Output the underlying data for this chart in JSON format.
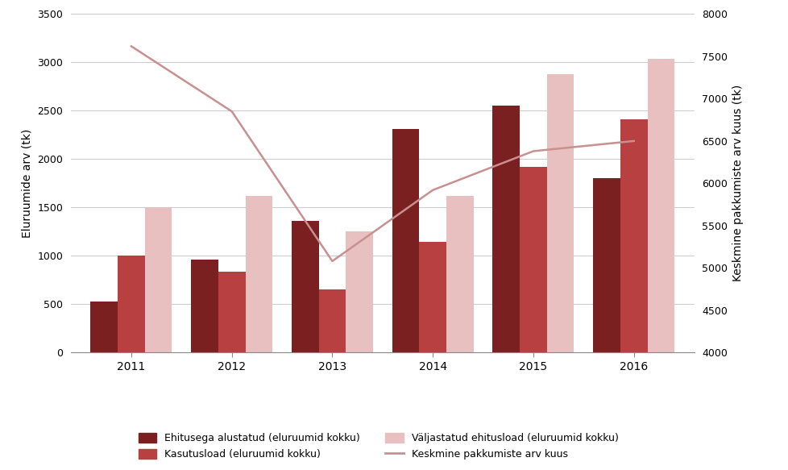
{
  "years": [
    2011,
    2012,
    2013,
    2014,
    2015,
    2016
  ],
  "ehitusega_alustatud": [
    530,
    960,
    1360,
    2310,
    2550,
    1800
  ],
  "kasutusload": [
    1005,
    835,
    650,
    1145,
    1920,
    2415
  ],
  "valjastatud_ehitusload": [
    1500,
    1620,
    1250,
    1620,
    2880,
    3040
  ],
  "keskmine_pakkumiste": [
    7620,
    6850,
    5080,
    5920,
    6380,
    6500
  ],
  "bar_color_dark": "#7b2020",
  "bar_color_mid": "#b84040",
  "bar_color_light": "#e8c0c0",
  "line_color": "#c89090",
  "ylabel_left": "Eluruumide arv (tk)",
  "ylabel_right": "Keskmine pakkumiste arv kuus (tk)",
  "ylim_left": [
    0,
    3500
  ],
  "ylim_right": [
    4000,
    8000
  ],
  "yticks_left": [
    0,
    500,
    1000,
    1500,
    2000,
    2500,
    3000,
    3500
  ],
  "yticks_right": [
    4000,
    4500,
    5000,
    5500,
    6000,
    6500,
    7000,
    7500,
    8000
  ],
  "legend_labels": [
    "Ehitusega alustatud (eluruumid kokku)",
    "Kasutusload (eluruumid kokku)",
    "Väljastatud ehitusload (eluruumid kokku)",
    "Keskmine pakkumiste arv kuus"
  ],
  "bar_width": 0.27,
  "background_color": "#ffffff",
  "grid_color": "#cccccc"
}
